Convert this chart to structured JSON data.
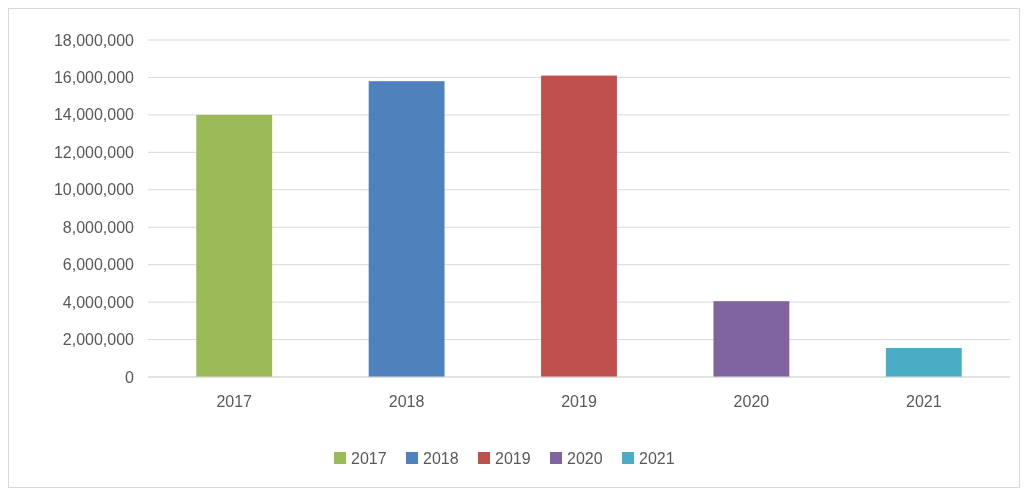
{
  "chart_data": {
    "type": "bar",
    "categories": [
      "2017",
      "2018",
      "2019",
      "2020",
      "2021"
    ],
    "series": [
      {
        "name": "2017",
        "color": "#9bbb59",
        "values": [
          14000000,
          null,
          null,
          null,
          null
        ]
      },
      {
        "name": "2018",
        "color": "#4f81bd",
        "values": [
          null,
          15800000,
          null,
          null,
          null
        ]
      },
      {
        "name": "2019",
        "color": "#c0504d",
        "values": [
          null,
          null,
          16100000,
          null,
          null
        ]
      },
      {
        "name": "2020",
        "color": "#8064a2",
        "values": [
          null,
          null,
          null,
          4050000,
          null
        ]
      },
      {
        "name": "2021",
        "color": "#4bacc6",
        "values": [
          null,
          null,
          null,
          null,
          1550000
        ]
      }
    ],
    "ylim": [
      0,
      18000000
    ],
    "yticks": [
      {
        "value": 0,
        "label": "0"
      },
      {
        "value": 2000000,
        "label": "2,000,000"
      },
      {
        "value": 4000000,
        "label": "4,000,000"
      },
      {
        "value": 6000000,
        "label": "6,000,000"
      },
      {
        "value": 8000000,
        "label": "8,000,000"
      },
      {
        "value": 10000000,
        "label": "10,000,000"
      },
      {
        "value": 12000000,
        "label": "12,000,000"
      },
      {
        "value": 14000000,
        "label": "14,000,000"
      },
      {
        "value": 16000000,
        "label": "16,000,000"
      },
      {
        "value": 18000000,
        "label": "18,000,000"
      }
    ],
    "grid": "y",
    "legend": "bottom"
  }
}
